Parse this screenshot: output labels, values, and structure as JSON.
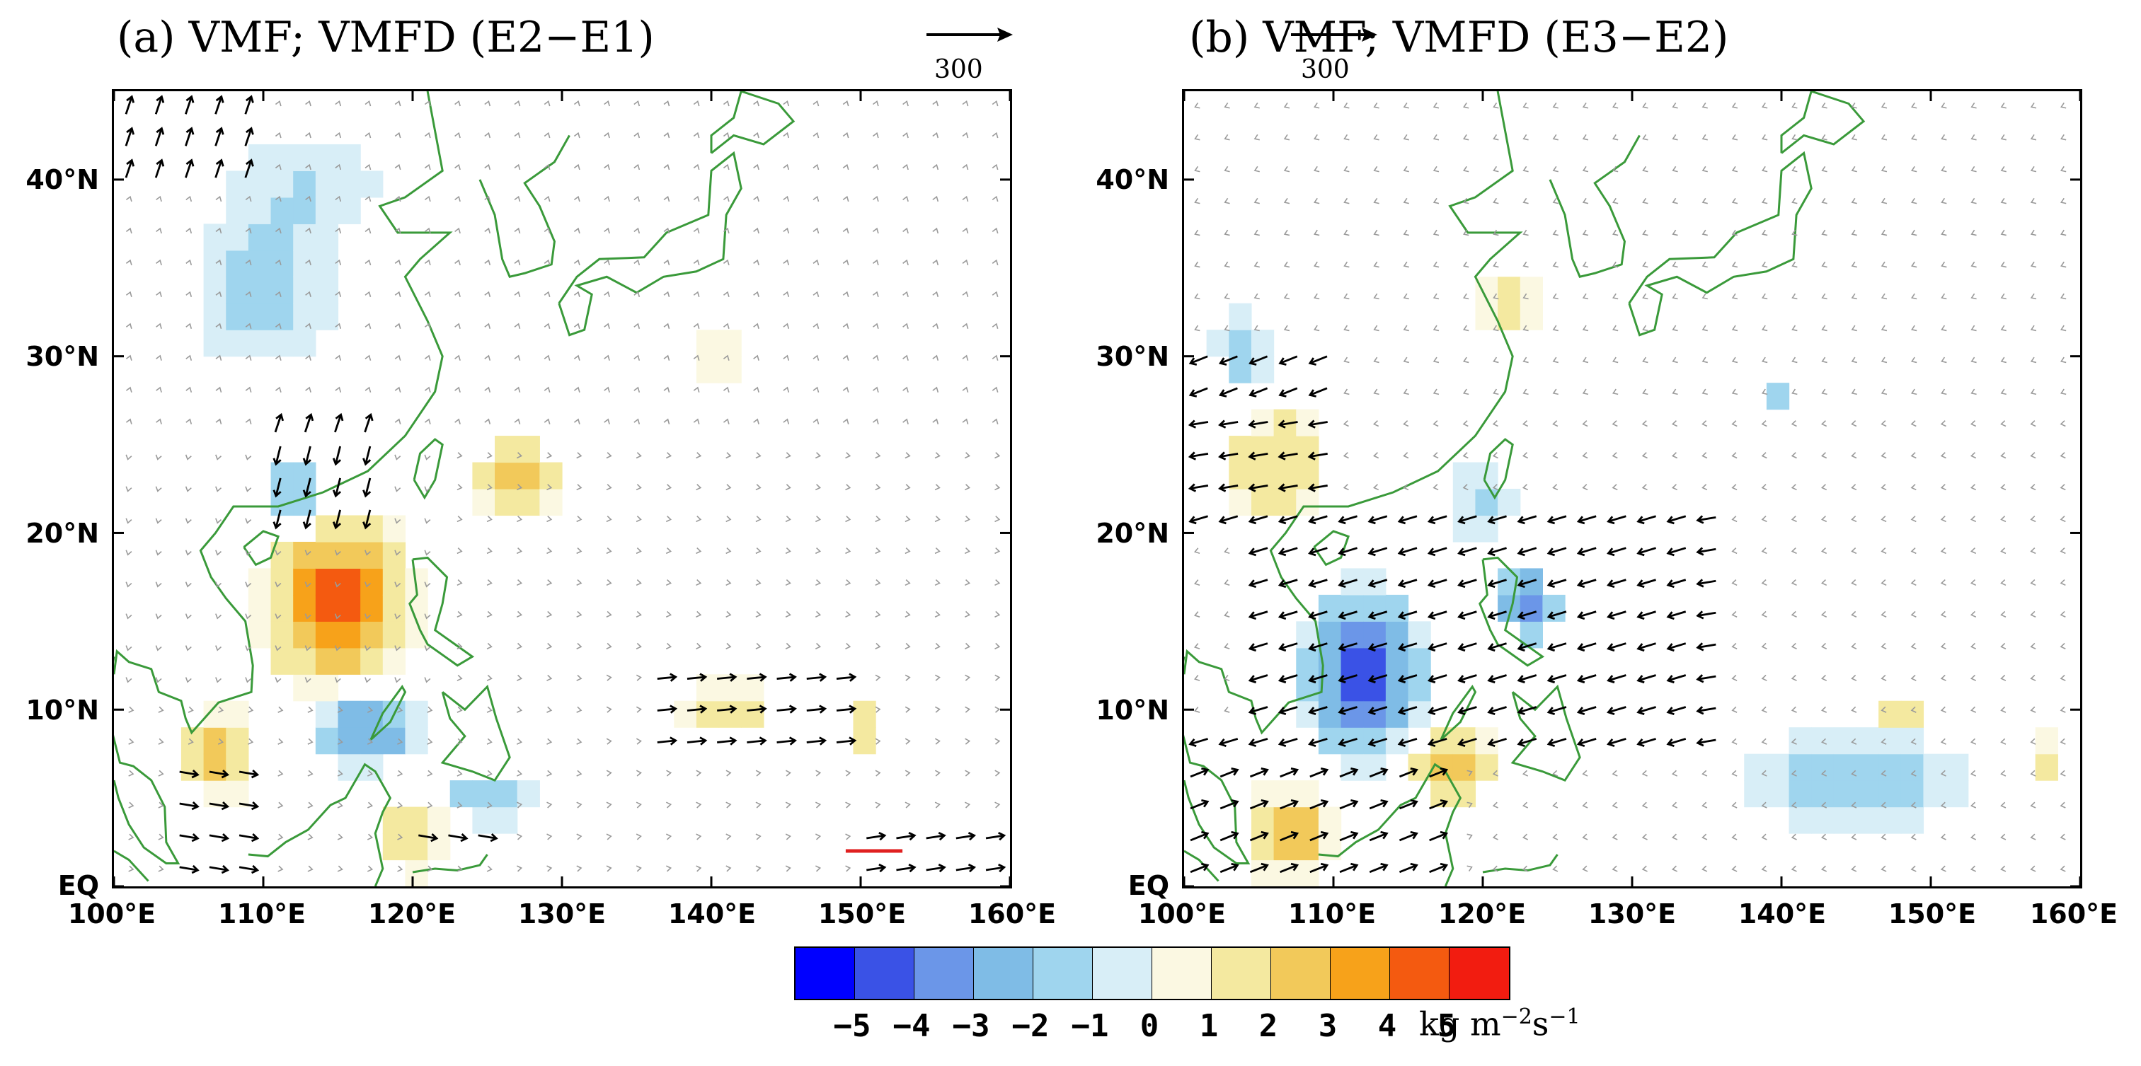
{
  "panels": [
    {
      "id": "a",
      "title": "(a) VMF; VMFD (E2−E1)",
      "reference_vector_label": "300",
      "lat_labels": [
        "40°N",
        "30°N",
        "20°N",
        "10°N",
        "EQ"
      ],
      "lon_labels": [
        "100°E",
        "110°E",
        "120°E",
        "130°E",
        "140°E",
        "150°E",
        "160°E"
      ]
    },
    {
      "id": "b",
      "title": "(b) VMF; VMFD (E3−E2)",
      "reference_vector_label": "300",
      "lat_labels": [
        "40°N",
        "30°N",
        "20°N",
        "10°N",
        "EQ"
      ],
      "lon_labels": [
        "100°E",
        "110°E",
        "120°E",
        "130°E",
        "140°E",
        "150°E",
        "160°E"
      ]
    }
  ],
  "colorbar": {
    "colors": [
      "#0000ff",
      "#3a52e6",
      "#6b96e8",
      "#7fbce6",
      "#9fd5ee",
      "#d8eef7",
      "#fbf8e2",
      "#f4e9a0",
      "#f2c95a",
      "#f7a21a",
      "#f45a10",
      "#f21c10"
    ],
    "labels": [
      "−5",
      "−4",
      "−3",
      "−2",
      "−1",
      "0",
      "1",
      "2",
      "3",
      "4",
      "5"
    ],
    "units": "kg m",
    "units_exp1": "−2",
    "units_mid": "s",
    "units_exp2": "−1"
  },
  "map_extent": {
    "lon_min": 100,
    "lon_max": 160,
    "lat_min": 0,
    "lat_max": 45
  },
  "coast_color": "#3a9a3a",
  "vector_colors": {
    "significant": "#000000",
    "other": "#9a9a9a",
    "highlight": "#e02020"
  }
}
